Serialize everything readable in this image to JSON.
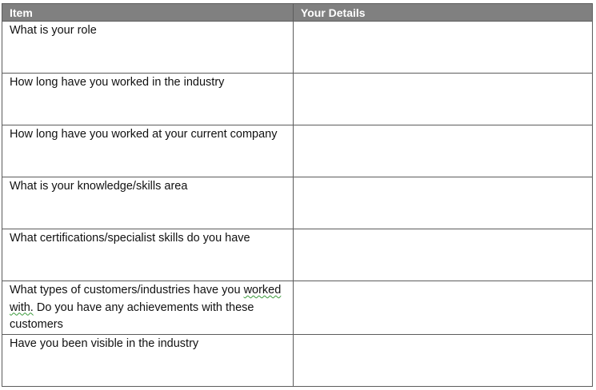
{
  "table": {
    "header": {
      "item": "Item",
      "details": "Your Details"
    },
    "rows": [
      {
        "item": "What is your role",
        "details": ""
      },
      {
        "item": "How long have you worked in the industry",
        "details": ""
      },
      {
        "item": "How long have you worked at your current company",
        "details": ""
      },
      {
        "item": "What is your knowledge/skills area",
        "details": ""
      },
      {
        "item": "What certifications/specialist skills do you have",
        "details": ""
      },
      {
        "item_before": "What types of customers/industries have you ",
        "item_flagged": "worked with.",
        "item_after": " Do you have any achievements with these customers",
        "details": ""
      },
      {
        "item": "Have you been visible in the industry",
        "details": ""
      }
    ]
  },
  "colors": {
    "header_background": "#808080",
    "header_text": "#ffffff",
    "border": "#5c5c5c",
    "grammar_underline": "#3a9a3a"
  }
}
